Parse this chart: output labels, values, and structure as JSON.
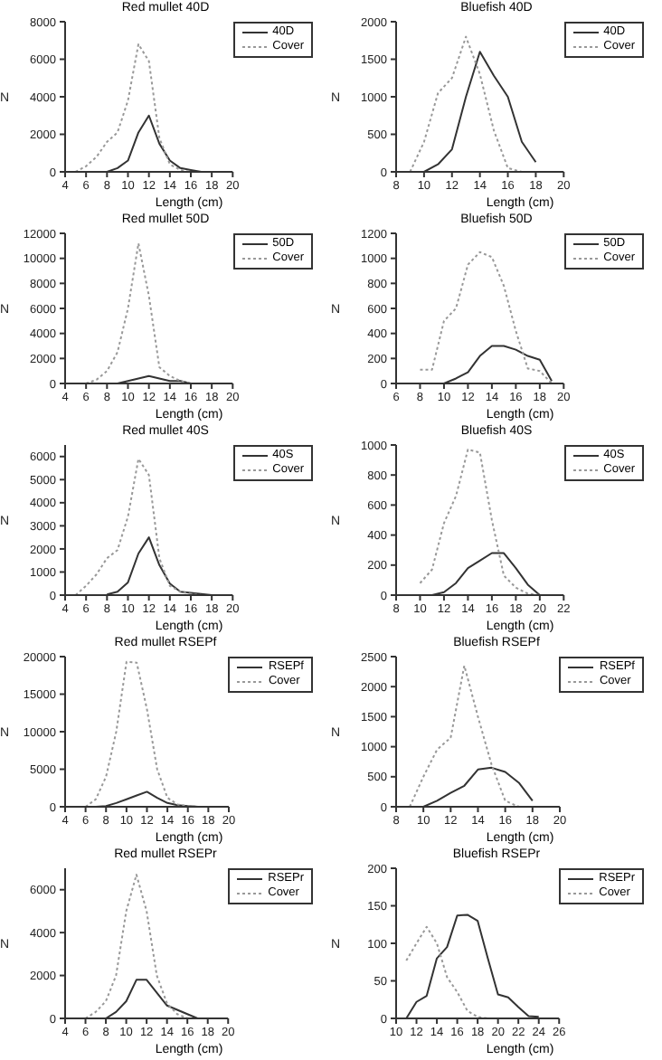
{
  "chart_data": [
    {
      "type": "line",
      "title": "Red mullet 40D",
      "xlabel": "Length (cm)",
      "ylabel": "N",
      "xlim": [
        4,
        20
      ],
      "xticks": [
        4,
        6,
        8,
        10,
        12,
        14,
        16,
        18,
        20
      ],
      "ylim": [
        0,
        8000
      ],
      "yticks": [
        0,
        2000,
        4000,
        6000,
        8000
      ],
      "legend": "top right",
      "series": [
        {
          "name": "40D",
          "color": "#333333",
          "line_style": "solid",
          "x": [
            7,
            8,
            9,
            10,
            11,
            12,
            13,
            14,
            15,
            16,
            17,
            18
          ],
          "values": [
            0,
            0,
            200,
            600,
            2100,
            3000,
            1500,
            600,
            200,
            100,
            0,
            0
          ]
        },
        {
          "name": "Cover",
          "color": "#999999",
          "line_style": "dotted",
          "x": [
            5,
            6,
            7,
            8,
            9,
            10,
            11,
            12,
            13,
            14,
            15,
            16,
            17
          ],
          "values": [
            0,
            300,
            800,
            1600,
            2100,
            3800,
            6800,
            5900,
            1800,
            400,
            100,
            0,
            0
          ]
        }
      ]
    },
    {
      "type": "line",
      "title": "Bluefish 40D",
      "xlabel": "Length (cm)",
      "ylabel": "N",
      "xlim": [
        8,
        20
      ],
      "xticks": [
        8,
        10,
        12,
        14,
        16,
        18,
        20
      ],
      "ylim": [
        0,
        2000
      ],
      "yticks": [
        0,
        500,
        1000,
        1500,
        2000
      ],
      "legend": "top right",
      "series": [
        {
          "name": "40D",
          "color": "#333333",
          "line_style": "solid",
          "x": [
            10,
            11,
            12,
            13,
            14,
            15,
            16,
            17,
            18
          ],
          "values": [
            0,
            100,
            300,
            1000,
            1600,
            1280,
            1000,
            400,
            130
          ]
        },
        {
          "name": "Cover",
          "color": "#999999",
          "line_style": "dotted",
          "x": [
            9,
            10,
            11,
            12,
            13,
            14,
            15,
            16,
            17
          ],
          "values": [
            0,
            400,
            1050,
            1250,
            1800,
            1300,
            550,
            50,
            0
          ]
        }
      ]
    },
    {
      "type": "line",
      "title": "Red mullet 50D",
      "xlabel": "Length (cm)",
      "ylabel": "N",
      "xlim": [
        4,
        20
      ],
      "xticks": [
        4,
        6,
        8,
        10,
        12,
        14,
        16,
        18,
        20
      ],
      "ylim": [
        0,
        12000
      ],
      "yticks": [
        0,
        2000,
        4000,
        6000,
        8000,
        10000,
        12000
      ],
      "legend": "top right",
      "series": [
        {
          "name": "50D",
          "color": "#333333",
          "line_style": "solid",
          "x": [
            7,
            8,
            9,
            10,
            11,
            12,
            13,
            14,
            15,
            16,
            17
          ],
          "values": [
            0,
            0,
            0,
            200,
            400,
            600,
            400,
            200,
            200,
            0,
            0
          ]
        },
        {
          "name": "Cover",
          "color": "#999999",
          "line_style": "dotted",
          "x": [
            6,
            7,
            8,
            9,
            10,
            11,
            12,
            13,
            14,
            15,
            16
          ],
          "values": [
            0,
            300,
            1000,
            2500,
            6000,
            11200,
            7000,
            1300,
            600,
            200,
            0
          ]
        }
      ]
    },
    {
      "type": "line",
      "title": "Bluefish 50D",
      "xlabel": "Length (cm)",
      "ylabel": "N",
      "xlim": [
        6,
        20
      ],
      "xticks": [
        6,
        8,
        10,
        12,
        14,
        16,
        18,
        20
      ],
      "ylim": [
        0,
        1200
      ],
      "yticks": [
        0,
        200,
        400,
        600,
        800,
        1000,
        1200
      ],
      "legend": "top right",
      "series": [
        {
          "name": "50D",
          "color": "#333333",
          "line_style": "solid",
          "x": [
            10,
            11,
            12,
            13,
            14,
            15,
            16,
            17,
            18,
            19
          ],
          "values": [
            0,
            40,
            90,
            220,
            300,
            300,
            270,
            220,
            190,
            20
          ]
        },
        {
          "name": "Cover",
          "color": "#999999",
          "line_style": "dotted",
          "x": [
            8,
            9,
            10,
            11,
            12,
            13,
            14,
            15,
            16,
            17,
            18,
            19
          ],
          "values": [
            110,
            110,
            500,
            600,
            950,
            1050,
            1010,
            780,
            420,
            120,
            100,
            0
          ]
        }
      ]
    },
    {
      "type": "line",
      "title": "Red mullet 40S",
      "xlabel": "Length (cm)",
      "ylabel": "N",
      "xlim": [
        4,
        20
      ],
      "xticks": [
        4,
        6,
        8,
        10,
        12,
        14,
        16,
        18,
        20
      ],
      "ylim": [
        0,
        6500
      ],
      "yticks": [
        0,
        1000,
        2000,
        3000,
        4000,
        5000,
        6000
      ],
      "legend": "top right",
      "series": [
        {
          "name": "40S",
          "color": "#333333",
          "line_style": "solid",
          "x": [
            8,
            9,
            10,
            11,
            12,
            13,
            14,
            15,
            16,
            17,
            18
          ],
          "values": [
            30,
            150,
            550,
            1800,
            2500,
            1300,
            500,
            150,
            100,
            50,
            0
          ]
        },
        {
          "name": "Cover",
          "color": "#999999",
          "line_style": "dotted",
          "x": [
            5,
            6,
            7,
            8,
            9,
            10,
            11,
            12,
            13,
            14,
            15,
            16,
            17
          ],
          "values": [
            0,
            400,
            900,
            1600,
            1950,
            3400,
            5900,
            5200,
            1600,
            400,
            150,
            50,
            0
          ]
        }
      ]
    },
    {
      "type": "line",
      "title": "Bluefish 40S",
      "xlabel": "Length (cm)",
      "ylabel": "N",
      "xlim": [
        8,
        22
      ],
      "xticks": [
        8,
        10,
        12,
        14,
        16,
        18,
        20,
        22
      ],
      "ylim": [
        0,
        1000
      ],
      "yticks": [
        0,
        200,
        400,
        600,
        800,
        1000
      ],
      "legend": "top right",
      "series": [
        {
          "name": "40S",
          "color": "#333333",
          "line_style": "solid",
          "x": [
            10,
            11,
            12,
            13,
            14,
            15,
            16,
            17,
            18,
            19,
            20
          ],
          "values": [
            0,
            0,
            20,
            80,
            180,
            230,
            280,
            280,
            180,
            70,
            0
          ]
        },
        {
          "name": "Cover",
          "color": "#999999",
          "line_style": "dotted",
          "x": [
            10,
            11,
            12,
            13,
            14,
            15,
            16,
            17,
            18,
            19,
            20
          ],
          "values": [
            80,
            170,
            480,
            660,
            970,
            950,
            500,
            130,
            50,
            10,
            0
          ]
        }
      ]
    },
    {
      "type": "line",
      "title": "Red mullet RSEPf",
      "xlabel": "Length (cm)",
      "ylabel": "N",
      "xlim": [
        4,
        20
      ],
      "xticks": [
        4,
        6,
        8,
        10,
        12,
        14,
        16,
        18,
        20
      ],
      "ylim": [
        0,
        20000
      ],
      "yticks": [
        0,
        5000,
        10000,
        15000,
        20000
      ],
      "legend": "top right",
      "series": [
        {
          "name": "RSEPf",
          "color": "#333333",
          "line_style": "solid",
          "x": [
            7,
            8,
            9,
            10,
            11,
            12,
            13,
            14,
            15,
            16,
            17,
            18
          ],
          "values": [
            0,
            100,
            500,
            1000,
            1500,
            2000,
            1200,
            500,
            200,
            100,
            0,
            0
          ]
        },
        {
          "name": "Cover",
          "color": "#999999",
          "line_style": "dotted",
          "x": [
            6,
            7,
            8,
            9,
            10,
            11,
            12,
            13,
            14,
            15,
            16,
            17
          ],
          "values": [
            0,
            1000,
            4000,
            10000,
            19300,
            19200,
            13000,
            5000,
            1200,
            300,
            100,
            0
          ]
        }
      ]
    },
    {
      "type": "line",
      "title": "Bluefish RSEPf",
      "xlabel": "Length (cm)",
      "ylabel": "N",
      "xlim": [
        8,
        20
      ],
      "xticks": [
        8,
        10,
        12,
        14,
        16,
        18,
        20
      ],
      "ylim": [
        0,
        2500
      ],
      "yticks": [
        0,
        500,
        1000,
        1500,
        2000,
        2500
      ],
      "legend": "top right",
      "series": [
        {
          "name": "RSEPf",
          "color": "#333333",
          "line_style": "solid",
          "x": [
            10,
            11,
            12,
            13,
            14,
            15,
            16,
            17,
            18
          ],
          "values": [
            0,
            100,
            230,
            350,
            620,
            650,
            580,
            400,
            100
          ]
        },
        {
          "name": "Cover",
          "color": "#999999",
          "line_style": "dotted",
          "x": [
            9,
            10,
            11,
            12,
            13,
            14,
            15,
            16,
            17
          ],
          "values": [
            0,
            500,
            950,
            1150,
            2350,
            1500,
            700,
            100,
            0
          ]
        }
      ]
    },
    {
      "type": "line",
      "title": "Red mullet RSEPr",
      "xlabel": "Length (cm)",
      "ylabel": "N",
      "xlim": [
        4,
        20
      ],
      "xticks": [
        4,
        6,
        8,
        10,
        12,
        14,
        16,
        18,
        20
      ],
      "ylim": [
        0,
        7000
      ],
      "yticks": [
        0,
        2000,
        4000,
        6000
      ],
      "legend": "top right",
      "series": [
        {
          "name": "RSEPr",
          "color": "#333333",
          "line_style": "solid",
          "x": [
            8,
            9,
            10,
            11,
            12,
            13,
            14,
            15,
            16,
            17,
            18
          ],
          "values": [
            0,
            300,
            800,
            1800,
            1800,
            1200,
            600,
            400,
            200,
            0,
            0
          ]
        },
        {
          "name": "Cover",
          "color": "#999999",
          "line_style": "dotted",
          "x": [
            6,
            7,
            8,
            9,
            10,
            11,
            12,
            13,
            14,
            15,
            16,
            17
          ],
          "values": [
            0,
            300,
            800,
            2000,
            5000,
            6700,
            5000,
            2000,
            700,
            200,
            0,
            0
          ]
        }
      ]
    },
    {
      "type": "line",
      "title": "Bluefish RSEPr",
      "xlabel": "Length (cm)",
      "ylabel": "N",
      "xlim": [
        10,
        26
      ],
      "xticks": [
        10,
        12,
        14,
        16,
        18,
        20,
        22,
        24,
        26
      ],
      "ylim": [
        0,
        200
      ],
      "yticks": [
        0,
        50,
        100,
        150,
        200
      ],
      "legend": "top right",
      "series": [
        {
          "name": "RSEPr",
          "color": "#333333",
          "line_style": "solid",
          "x": [
            11,
            12,
            13,
            14,
            15,
            16,
            17,
            18,
            19,
            20,
            21,
            22,
            23,
            24
          ],
          "values": [
            0,
            22,
            30,
            80,
            95,
            137,
            138,
            130,
            80,
            32,
            28,
            15,
            3,
            2
          ]
        },
        {
          "name": "Cover",
          "color": "#999999",
          "line_style": "dotted",
          "x": [
            11,
            12,
            13,
            14,
            15,
            16,
            17,
            18,
            19
          ],
          "values": [
            77,
            100,
            122,
            100,
            55,
            35,
            10,
            2,
            0
          ]
        }
      ]
    }
  ]
}
